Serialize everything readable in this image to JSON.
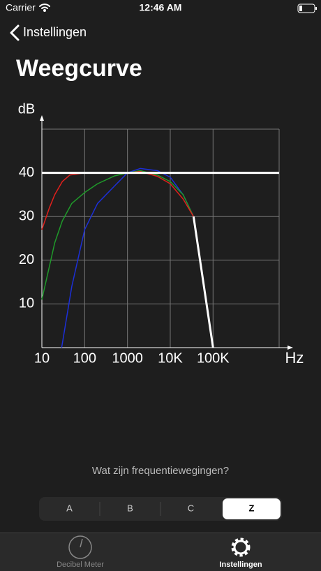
{
  "status_bar": {
    "carrier": "Carrier",
    "time": "12:46 AM"
  },
  "nav": {
    "back": "Instellingen"
  },
  "header": {
    "title": "Weegcurve"
  },
  "chart_data": {
    "type": "line",
    "y_label": "dB",
    "x_label": "Hz",
    "log_x": true,
    "grid": true,
    "xlim": [
      10,
      3500000
    ],
    "ylim": [
      0,
      50
    ],
    "xticks": [
      10,
      100,
      1000,
      {
        "value": 10000,
        "label": "10K"
      },
      {
        "value": 100000,
        "label": "100K"
      }
    ],
    "yticks": [
      10,
      20,
      30,
      40
    ],
    "series": [
      {
        "color": "#ffffff",
        "x": [
          10,
          3500000
        ],
        "values": [
          40,
          40
        ]
      },
      {
        "color": "#ffffff",
        "x": [
          35000,
          100000
        ],
        "values": [
          30,
          0
        ]
      },
      {
        "color": "#e0201c",
        "x": [
          10,
          15,
          20,
          30,
          45,
          100,
          1000,
          2000,
          5000,
          10000,
          20000,
          35000
        ],
        "values": [
          27,
          32,
          35,
          38,
          39.5,
          40,
          40,
          40.3,
          39.2,
          37.5,
          34,
          30
        ]
      },
      {
        "color": "#1f9a2a",
        "x": [
          10,
          20,
          30,
          50,
          100,
          200,
          500,
          1000,
          2000,
          5000,
          10000,
          20000,
          35000
        ],
        "values": [
          11,
          24,
          29,
          33,
          35.5,
          37.5,
          39.3,
          40,
          40.5,
          39.5,
          38,
          35,
          30
        ]
      },
      {
        "color": "#1c2fd8",
        "x": [
          29,
          50,
          100,
          200,
          500,
          1000,
          2000,
          5000,
          10000,
          20000,
          35000
        ],
        "values": [
          0,
          14,
          27,
          33,
          37,
          40,
          41,
          40.5,
          39,
          35,
          30
        ]
      }
    ]
  },
  "link": {
    "text": "Wat zijn frequentiewegingen?"
  },
  "segmented": {
    "options": [
      "A",
      "B",
      "C",
      "Z"
    ],
    "selected": 3
  },
  "tab_bar": {
    "items": [
      "Decibel Meter",
      "Instellingen"
    ],
    "selected": 1
  }
}
